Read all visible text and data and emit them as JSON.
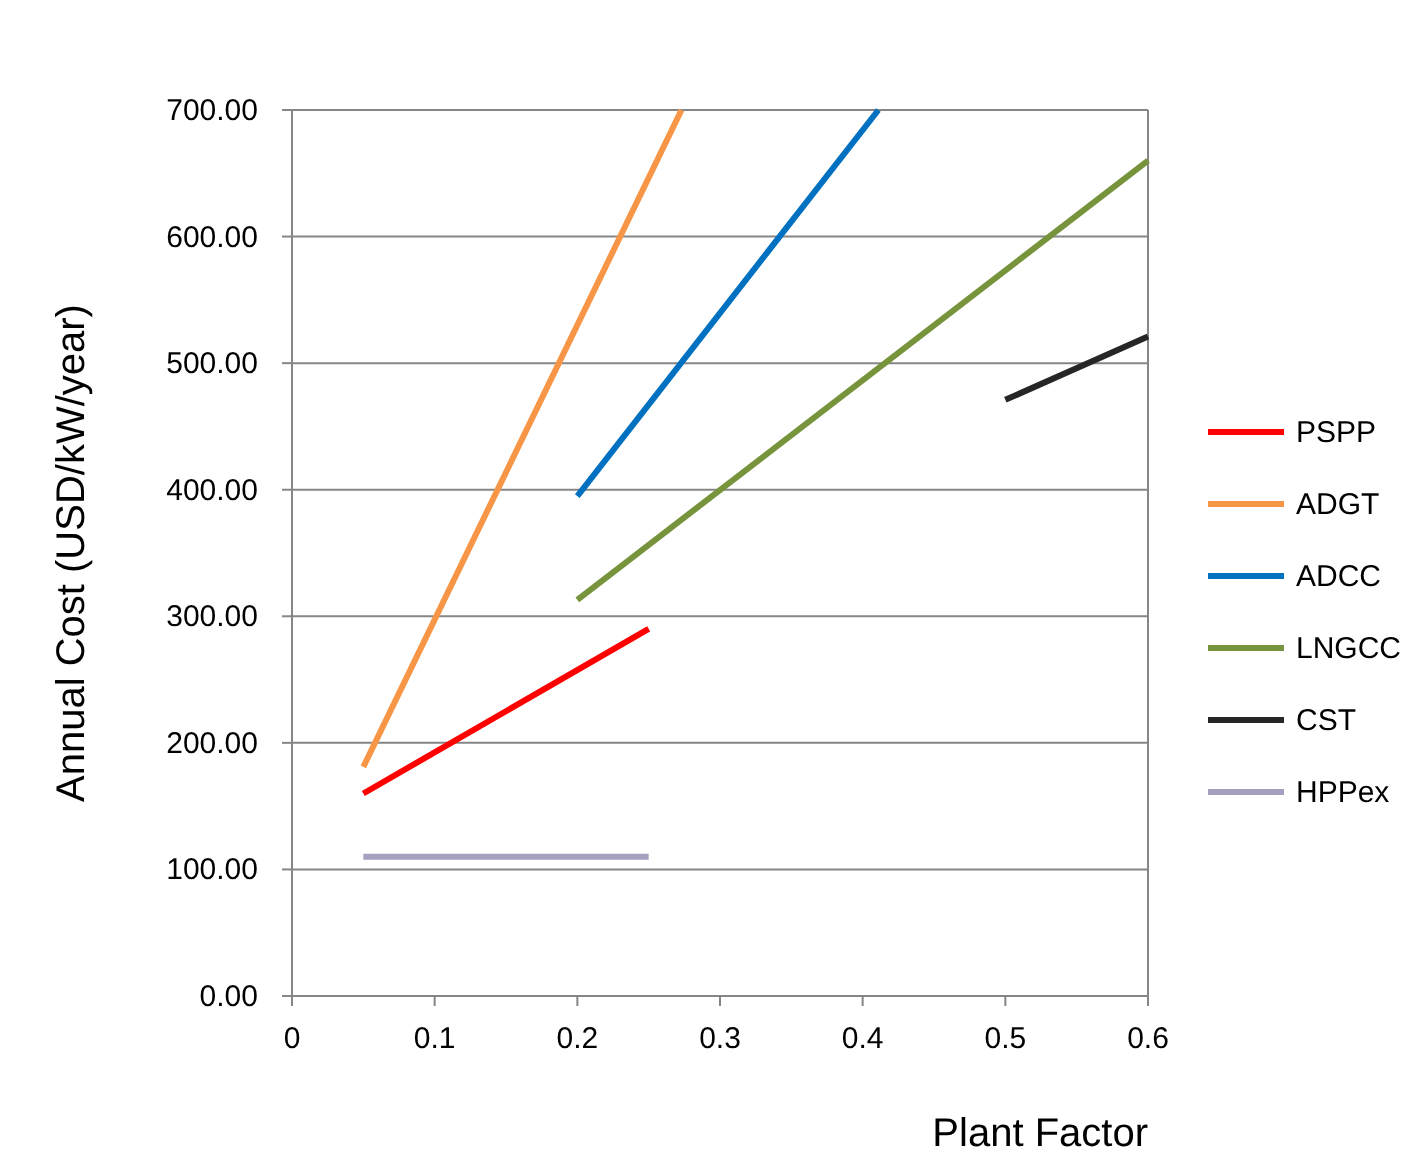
{
  "chart_data": {
    "type": "line",
    "xlabel": "Plant Factor",
    "ylabel": "Annual Cost (USD/kW/year)",
    "xlim": [
      0,
      0.6
    ],
    "xticks": [
      0,
      0.1,
      0.2,
      0.3,
      0.4,
      0.5,
      0.6
    ],
    "ylim": [
      0,
      700
    ],
    "yticks": [
      {
        "value": 0,
        "label": "0.00"
      },
      {
        "value": 100,
        "label": "100.00"
      },
      {
        "value": 200,
        "label": "200.00"
      },
      {
        "value": 300,
        "label": "300.00"
      },
      {
        "value": 400,
        "label": "400.00"
      },
      {
        "value": 500,
        "label": "500.00"
      },
      {
        "value": 600,
        "label": "600.00"
      },
      {
        "value": 700,
        "label": "700.00"
      }
    ],
    "grid": "y",
    "legend": "right",
    "marker": "none",
    "line_style": "solid",
    "series": [
      {
        "name": "PSPP",
        "color": "#ff0000",
        "x": [
          0.05,
          0.25
        ],
        "values": [
          160,
          290
        ]
      },
      {
        "name": "ADGT",
        "color": "#f79646",
        "x": [
          0.05,
          0.273
        ],
        "values": [
          181,
          700
        ]
      },
      {
        "name": "ADCC",
        "color": "#0070c0",
        "x": [
          0.2,
          0.411
        ],
        "values": [
          395,
          700
        ]
      },
      {
        "name": "LNGCC",
        "color": "#77933c",
        "x": [
          0.2,
          0.6
        ],
        "values": [
          313,
          660
        ]
      },
      {
        "name": "CST",
        "color": "#262626",
        "x": [
          0.5,
          0.6
        ],
        "values": [
          471,
          521
        ]
      },
      {
        "name": "HPPex",
        "color": "#a6a0c0",
        "x": [
          0.05,
          0.25
        ],
        "values": [
          110,
          110
        ]
      }
    ]
  }
}
